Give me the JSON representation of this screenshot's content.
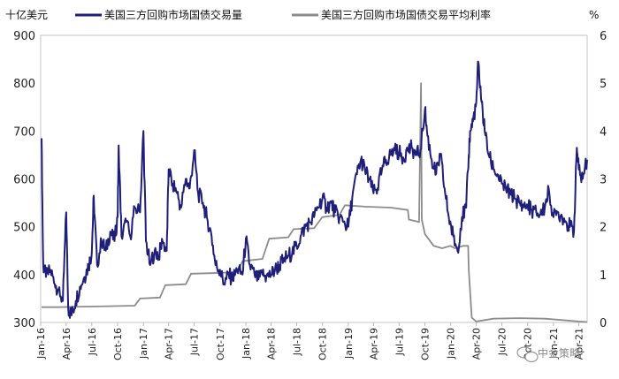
{
  "chart_data": {
    "type": "line",
    "left_unit": "十亿美元",
    "right_unit": "%",
    "y_left": {
      "min": 300,
      "max": 900,
      "ticks": [
        300,
        400,
        500,
        600,
        700,
        800,
        900
      ]
    },
    "y_right": {
      "min": 0,
      "max": 6,
      "ticks": [
        0,
        1,
        2,
        3,
        4,
        5,
        6
      ]
    },
    "x_axis": {
      "start": "2016-01",
      "end": "2021-05",
      "tick_labels": [
        "Jan-16",
        "Apr-16",
        "Jul-16",
        "Oct-16",
        "Jan-17",
        "Apr-17",
        "Jul-17",
        "Oct-17",
        "Jan-18",
        "Apr-18",
        "Jul-18",
        "Oct-18",
        "Jan-19",
        "Apr-19",
        "Jul-19",
        "Oct-19",
        "Jan-20",
        "Apr-20",
        "Jul-20",
        "Oct-20",
        "Jan-21",
        "Apr-21"
      ]
    },
    "legend_position": "top",
    "series": [
      {
        "name": "美国三方回购市场国债交易量",
        "axis": "left",
        "color": "#1f1f7a",
        "points": [
          [
            "2016-01-04",
            685
          ],
          [
            "2016-01-10",
            420
          ],
          [
            "2016-01-20",
            395
          ],
          [
            "2016-02-05",
            410
          ],
          [
            "2016-02-20",
            380
          ],
          [
            "2016-03-05",
            370
          ],
          [
            "2016-03-20",
            345
          ],
          [
            "2016-04-01",
            530
          ],
          [
            "2016-04-08",
            330
          ],
          [
            "2016-04-20",
            315
          ],
          [
            "2016-05-05",
            345
          ],
          [
            "2016-05-20",
            375
          ],
          [
            "2016-06-05",
            395
          ],
          [
            "2016-06-20",
            420
          ],
          [
            "2016-07-01",
            445
          ],
          [
            "2016-07-08",
            565
          ],
          [
            "2016-07-20",
            420
          ],
          [
            "2016-08-05",
            470
          ],
          [
            "2016-08-20",
            450
          ],
          [
            "2016-09-05",
            490
          ],
          [
            "2016-09-20",
            470
          ],
          [
            "2016-10-01",
            520
          ],
          [
            "2016-10-05",
            670
          ],
          [
            "2016-10-15",
            480
          ],
          [
            "2016-11-01",
            510
          ],
          [
            "2016-11-15",
            480
          ],
          [
            "2016-12-01",
            540
          ],
          [
            "2016-12-20",
            530
          ],
          [
            "2017-01-01",
            700
          ],
          [
            "2017-01-10",
            470
          ],
          [
            "2017-01-25",
            420
          ],
          [
            "2017-02-10",
            450
          ],
          [
            "2017-02-25",
            440
          ],
          [
            "2017-03-10",
            470
          ],
          [
            "2017-03-25",
            450
          ],
          [
            "2017-04-01",
            620
          ],
          [
            "2017-04-15",
            590
          ],
          [
            "2017-05-01",
            570
          ],
          [
            "2017-05-15",
            540
          ],
          [
            "2017-06-01",
            600
          ],
          [
            "2017-06-15",
            580
          ],
          [
            "2017-07-01",
            660
          ],
          [
            "2017-07-15",
            570
          ],
          [
            "2017-08-01",
            550
          ],
          [
            "2017-08-15",
            520
          ],
          [
            "2017-09-01",
            480
          ],
          [
            "2017-09-15",
            420
          ],
          [
            "2017-10-01",
            410
          ],
          [
            "2017-10-15",
            380
          ],
          [
            "2017-11-01",
            400
          ],
          [
            "2017-11-15",
            390
          ],
          [
            "2017-12-01",
            410
          ],
          [
            "2017-12-20",
            400
          ],
          [
            "2018-01-01",
            475
          ],
          [
            "2018-01-15",
            420
          ],
          [
            "2018-02-01",
            400
          ],
          [
            "2018-02-15",
            390
          ],
          [
            "2018-03-01",
            400
          ],
          [
            "2018-03-15",
            395
          ],
          [
            "2018-04-01",
            400
          ],
          [
            "2018-04-15",
            410
          ],
          [
            "2018-05-01",
            420
          ],
          [
            "2018-05-15",
            430
          ],
          [
            "2018-06-01",
            440
          ],
          [
            "2018-06-15",
            445
          ],
          [
            "2018-07-01",
            460
          ],
          [
            "2018-07-15",
            480
          ],
          [
            "2018-08-01",
            500
          ],
          [
            "2018-08-15",
            510
          ],
          [
            "2018-09-01",
            520
          ],
          [
            "2018-09-15",
            540
          ],
          [
            "2018-10-01",
            560
          ],
          [
            "2018-10-15",
            540
          ],
          [
            "2018-11-01",
            550
          ],
          [
            "2018-11-15",
            530
          ],
          [
            "2018-12-01",
            520
          ],
          [
            "2018-12-15",
            510
          ],
          [
            "2019-01-01",
            500
          ],
          [
            "2019-01-15",
            560
          ],
          [
            "2019-02-01",
            610
          ],
          [
            "2019-02-15",
            640
          ],
          [
            "2019-03-01",
            620
          ],
          [
            "2019-03-15",
            600
          ],
          [
            "2019-04-01",
            570
          ],
          [
            "2019-04-15",
            580
          ],
          [
            "2019-05-01",
            620
          ],
          [
            "2019-05-15",
            640
          ],
          [
            "2019-06-01",
            650
          ],
          [
            "2019-06-15",
            660
          ],
          [
            "2019-07-01",
            655
          ],
          [
            "2019-07-15",
            645
          ],
          [
            "2019-08-01",
            660
          ],
          [
            "2019-08-15",
            665
          ],
          [
            "2019-09-01",
            650
          ],
          [
            "2019-09-15",
            660
          ],
          [
            "2019-10-01",
            745
          ],
          [
            "2019-10-10",
            690
          ],
          [
            "2019-10-25",
            640
          ],
          [
            "2019-11-10",
            610
          ],
          [
            "2019-11-25",
            650
          ],
          [
            "2019-12-10",
            580
          ],
          [
            "2019-12-25",
            520
          ],
          [
            "2020-01-10",
            480
          ],
          [
            "2020-01-25",
            450
          ],
          [
            "2020-02-10",
            520
          ],
          [
            "2020-02-25",
            540
          ],
          [
            "2020-03-05",
            650
          ],
          [
            "2020-03-10",
            700
          ],
          [
            "2020-03-20",
            720
          ],
          [
            "2020-04-01",
            760
          ],
          [
            "2020-04-08",
            845
          ],
          [
            "2020-04-20",
            760
          ],
          [
            "2020-05-01",
            700
          ],
          [
            "2020-05-15",
            650
          ],
          [
            "2020-06-01",
            620
          ],
          [
            "2020-06-15",
            610
          ],
          [
            "2020-07-01",
            590
          ],
          [
            "2020-07-15",
            580
          ],
          [
            "2020-08-01",
            570
          ],
          [
            "2020-08-15",
            560
          ],
          [
            "2020-09-01",
            550
          ],
          [
            "2020-09-15",
            540
          ],
          [
            "2020-10-01",
            545
          ],
          [
            "2020-10-15",
            535
          ],
          [
            "2020-11-01",
            530
          ],
          [
            "2020-11-15",
            525
          ],
          [
            "2020-12-01",
            540
          ],
          [
            "2020-12-15",
            580
          ],
          [
            "2021-01-01",
            520
          ],
          [
            "2021-01-15",
            530
          ],
          [
            "2021-02-01",
            520
          ],
          [
            "2021-02-15",
            510
          ],
          [
            "2021-03-01",
            500
          ],
          [
            "2021-03-15",
            490
          ],
          [
            "2021-03-25",
            665
          ],
          [
            "2021-04-01",
            620
          ],
          [
            "2021-04-15",
            600
          ],
          [
            "2021-05-01",
            640
          ]
        ]
      },
      {
        "name": "美国三方回购市场国债交易平均利率",
        "axis": "right",
        "color": "#8c8c8c",
        "points": [
          [
            "2016-01-04",
            0.32
          ],
          [
            "2016-03-01",
            0.32
          ],
          [
            "2016-06-01",
            0.33
          ],
          [
            "2016-09-01",
            0.34
          ],
          [
            "2016-12-01",
            0.35
          ],
          [
            "2016-12-20",
            0.5
          ],
          [
            "2017-03-01",
            0.52
          ],
          [
            "2017-03-20",
            0.78
          ],
          [
            "2017-06-01",
            0.8
          ],
          [
            "2017-06-20",
            1.02
          ],
          [
            "2017-09-01",
            1.03
          ],
          [
            "2017-12-01",
            1.05
          ],
          [
            "2017-12-20",
            1.28
          ],
          [
            "2018-03-01",
            1.33
          ],
          [
            "2018-03-25",
            1.75
          ],
          [
            "2018-06-01",
            1.78
          ],
          [
            "2018-06-20",
            1.95
          ],
          [
            "2018-09-01",
            1.97
          ],
          [
            "2018-09-30",
            2.2
          ],
          [
            "2018-12-01",
            2.25
          ],
          [
            "2018-12-20",
            2.45
          ],
          [
            "2019-03-01",
            2.42
          ],
          [
            "2019-06-01",
            2.4
          ],
          [
            "2019-08-01",
            2.35
          ],
          [
            "2019-08-05",
            2.15
          ],
          [
            "2019-09-10",
            2.1
          ],
          [
            "2019-09-17",
            5.0
          ],
          [
            "2019-09-20",
            2.15
          ],
          [
            "2019-10-01",
            1.85
          ],
          [
            "2019-11-01",
            1.6
          ],
          [
            "2019-12-01",
            1.55
          ],
          [
            "2019-12-31",
            1.6
          ],
          [
            "2020-01-15",
            1.55
          ],
          [
            "2020-02-15",
            1.6
          ],
          [
            "2020-03-03",
            1.6
          ],
          [
            "2020-03-05",
            1.1
          ],
          [
            "2020-03-16",
            0.1
          ],
          [
            "2020-04-01",
            0.02
          ],
          [
            "2020-06-01",
            0.08
          ],
          [
            "2020-09-01",
            0.09
          ],
          [
            "2020-12-01",
            0.08
          ],
          [
            "2021-02-01",
            0.05
          ],
          [
            "2021-04-01",
            0.02
          ],
          [
            "2021-05-01",
            0.01
          ]
        ]
      }
    ],
    "watermark": "中金策略"
  }
}
